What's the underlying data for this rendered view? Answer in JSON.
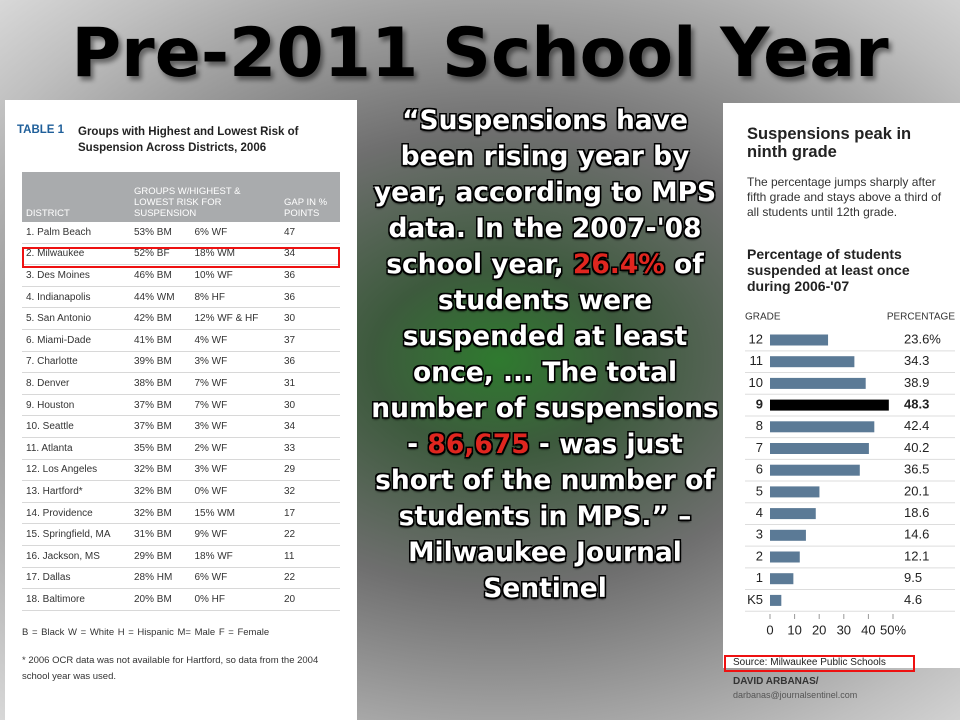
{
  "slide_title": "Pre-2011 School Year",
  "table": {
    "label": "TABLE 1",
    "title": "Groups with Highest and Lowest Risk of Suspension Across Districts, 2006",
    "headers": [
      "DISTRICT",
      "GROUPS W/HIGHEST & LOWEST RISK FOR SUSPENSION",
      "GAP IN % POINTS"
    ],
    "rows": [
      [
        "1. Palm Beach",
        "53% BM",
        "6% WF",
        47
      ],
      [
        "2. Milwaukee",
        "52% BF",
        "18% WM",
        34
      ],
      [
        "3. Des Moines",
        "46% BM",
        "10% WF",
        36
      ],
      [
        "4. Indianapolis",
        "44% WM",
        "8% HF",
        36
      ],
      [
        "5. San Antonio",
        "42% BM",
        "12% WF & HF",
        30
      ],
      [
        "6. Miami-Dade",
        "41% BM",
        "4% WF",
        37
      ],
      [
        "7. Charlotte",
        "39% BM",
        "3% WF",
        36
      ],
      [
        "8. Denver",
        "38% BM",
        "7% WF",
        31
      ],
      [
        "9. Houston",
        "37% BM",
        "7% WF",
        30
      ],
      [
        "10. Seattle",
        "37% BM",
        "3% WF",
        34
      ],
      [
        "11. Atlanta",
        "35% BM",
        "2% WF",
        33
      ],
      [
        "12. Los Angeles",
        "32% BM",
        "3% WF",
        29
      ],
      [
        "13. Hartford*",
        "32% BM",
        "0% WF",
        32
      ],
      [
        "14. Providence",
        "32% BM",
        "15% WM",
        17
      ],
      [
        "15. Springfield, MA",
        "31% BM",
        "9% WF",
        22
      ],
      [
        "16. Jackson, MS",
        "29% BM",
        "18% WF",
        11
      ],
      [
        "17. Dallas",
        "28% HM",
        "6% WF",
        22
      ],
      [
        "18. Baltimore",
        "20% BM",
        "0% HF",
        20
      ]
    ],
    "legend": "B = Black  W = White  H = Hispanic  M= Male  F = Female",
    "footnote": "* 2006 OCR data was not available for Hartford, so data from the 2004 school year was used."
  },
  "quote": {
    "segments": [
      {
        "text": "“Suspensions have been rising year by year, according to MPS data. In the 2007-'08 school year, ",
        "highlight": false
      },
      {
        "text": "26.4%",
        "highlight": true
      },
      {
        "text": " of students were suspended at least once, ... The total number of suspensions - ",
        "highlight": false
      },
      {
        "text": "86,675",
        "highlight": true
      },
      {
        "text": " - was just short of the number of students in MPS.” –Milwaukee Journal Sentinel",
        "highlight": false
      }
    ]
  },
  "chart_data": {
    "type": "bar",
    "orientation": "horizontal",
    "title": "Suspensions peak in ninth grade",
    "subtitle": "The percentage jumps sharply after fifth grade and stays above a third of all students until 12th grade.",
    "heading": "Percentage of students suspended at least once during 2006-'07",
    "category_header": "GRADE",
    "value_header": "PERCENTAGE",
    "categories": [
      "12",
      "11",
      "10",
      "9",
      "8",
      "7",
      "6",
      "5",
      "4",
      "3",
      "2",
      "1",
      "K5"
    ],
    "values": [
      23.6,
      34.3,
      38.9,
      48.3,
      42.4,
      40.2,
      36.5,
      20.1,
      18.6,
      14.6,
      12.1,
      9.5,
      4.6
    ],
    "value_labels": [
      "23.6%",
      "34.3",
      "38.9",
      "48.3",
      "42.4",
      "40.2",
      "36.5",
      "20.1",
      "18.6",
      "14.6",
      "12.1",
      "9.5",
      "4.6"
    ],
    "colors": [
      "#5b7a96",
      "#5b7a96",
      "#5b7a96",
      "#000000",
      "#5b7a96",
      "#5b7a96",
      "#5b7a96",
      "#5b7a96",
      "#5b7a96",
      "#5b7a96",
      "#5b7a96",
      "#5b7a96",
      "#5b7a96"
    ],
    "xlim": [
      0,
      50
    ],
    "xticks": [
      0,
      10,
      20,
      30,
      40,
      {
        "value": 50,
        "label": "50%"
      }
    ],
    "source": "Source: Milwaukee Public Schools",
    "credit": "DAVID ARBANAS/",
    "credit_email": "darbanas@journalsentinel.com"
  }
}
